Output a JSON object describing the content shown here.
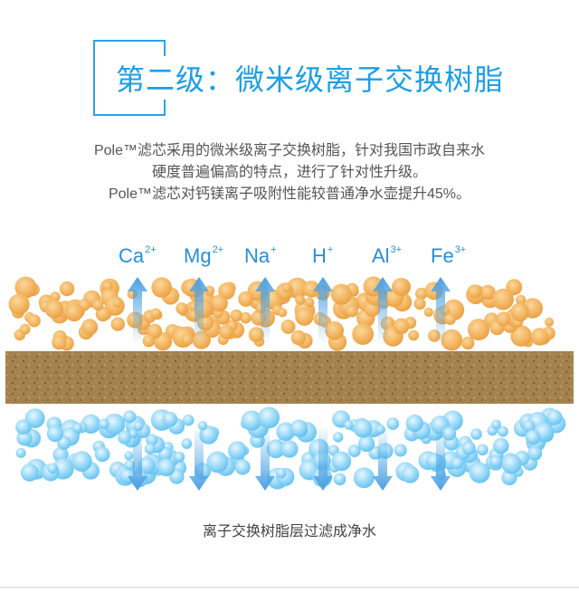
{
  "title": "第二级：微米级离子交换树脂",
  "description": [
    "Pole™滤芯采用的微米级离子交换树脂，针对我国市政自来水",
    "硬度普遍偏高的特点，进行了针对性升级。",
    "Pole™滤芯对钙镁离子吸附性能较普通净水壶提升45%。"
  ],
  "ions": [
    {
      "symbol": "Ca",
      "charge": "2+"
    },
    {
      "symbol": "Mg",
      "charge": "2+"
    },
    {
      "symbol": "Na",
      "charge": "+"
    },
    {
      "symbol": "H",
      "charge": "+"
    },
    {
      "symbol": "Al",
      "charge": "3+"
    },
    {
      "symbol": "Fe",
      "charge": "3+"
    }
  ],
  "caption": "离子交换树脂层过滤成净水",
  "colors": {
    "accent": "#1d9ee4",
    "ion_text": "#2a8ed8",
    "resin_orange": "#f0b25c",
    "filter_brown": "#9c7a45",
    "water_blue": "#7fcdf6",
    "arrow_blue": "#5aaee8"
  }
}
